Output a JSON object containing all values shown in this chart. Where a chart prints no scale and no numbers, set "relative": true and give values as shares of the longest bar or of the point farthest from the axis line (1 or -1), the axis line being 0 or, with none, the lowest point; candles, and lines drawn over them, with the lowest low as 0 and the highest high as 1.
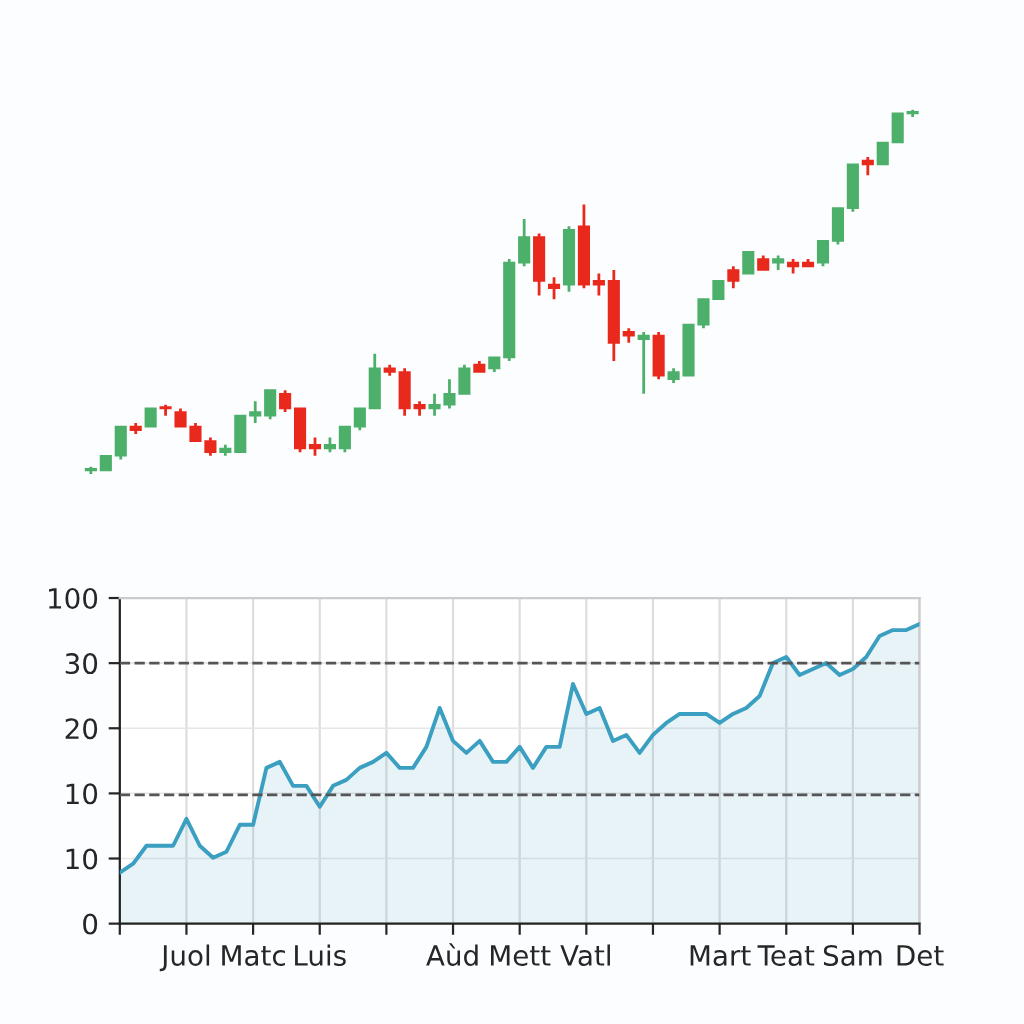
{
  "chart_data": [
    {
      "type": "candlestick",
      "relative": true,
      "categories": [
        null,
        null,
        null,
        null,
        null,
        null,
        null,
        null,
        null,
        null,
        null,
        null,
        null,
        null,
        null,
        null,
        null,
        null,
        null,
        null,
        null,
        null,
        null,
        null,
        null,
        null,
        null,
        null,
        null,
        null,
        null,
        null,
        null,
        null,
        null,
        null,
        null,
        null,
        null,
        null,
        null,
        null,
        null,
        null,
        null,
        null,
        null,
        null,
        null,
        null,
        null,
        null,
        null,
        null,
        null,
        null
      ],
      "ohlc": [
        [
          0.01,
          0.02,
          0,
          0.01
        ],
        [
          0.01,
          0.05,
          0.01,
          0.05
        ],
        [
          0.05,
          0.13,
          0.04,
          0.13
        ],
        [
          0.13,
          0.14,
          0.11,
          0.12
        ],
        [
          0.13,
          0.18,
          0.13,
          0.18
        ],
        [
          0.18,
          0.19,
          0.16,
          0.18
        ],
        [
          0.17,
          0.18,
          0.13,
          0.13
        ],
        [
          0.13,
          0.14,
          0.09,
          0.09
        ],
        [
          0.09,
          0.1,
          0.05,
          0.06
        ],
        [
          0.06,
          0.08,
          0.05,
          0.07
        ],
        [
          0.06,
          0.16,
          0.06,
          0.16
        ],
        [
          0.16,
          0.2,
          0.14,
          0.17
        ],
        [
          0.16,
          0.23,
          0.15,
          0.23
        ],
        [
          0.22,
          0.23,
          0.17,
          0.18
        ],
        [
          0.18,
          0.18,
          0.06,
          0.07
        ],
        [
          0.08,
          0.1,
          0.05,
          0.07
        ],
        [
          0.07,
          0.1,
          0.06,
          0.08
        ],
        [
          0.07,
          0.13,
          0.06,
          0.13
        ],
        [
          0.13,
          0.18,
          0.12,
          0.18
        ],
        [
          0.18,
          0.33,
          0.18,
          0.29
        ],
        [
          0.29,
          0.3,
          0.27,
          0.28
        ],
        [
          0.28,
          0.29,
          0.16,
          0.18
        ],
        [
          0.19,
          0.2,
          0.16,
          0.18
        ],
        [
          0.18,
          0.22,
          0.16,
          0.19
        ],
        [
          0.19,
          0.26,
          0.18,
          0.22
        ],
        [
          0.22,
          0.3,
          0.22,
          0.29
        ],
        [
          0.3,
          0.31,
          0.28,
          0.28
        ],
        [
          0.29,
          0.32,
          0.28,
          0.32
        ],
        [
          0.32,
          0.59,
          0.31,
          0.58
        ],
        [
          0.58,
          0.7,
          0.57,
          0.65
        ],
        [
          0.65,
          0.66,
          0.49,
          0.53
        ],
        [
          0.52,
          0.54,
          0.48,
          0.51
        ],
        [
          0.52,
          0.68,
          0.5,
          0.67
        ],
        [
          0.68,
          0.74,
          0.51,
          0.52
        ],
        [
          0.53,
          0.55,
          0.49,
          0.52
        ],
        [
          0.53,
          0.56,
          0.31,
          0.36
        ],
        [
          0.39,
          0.4,
          0.36,
          0.38
        ],
        [
          0.37,
          0.39,
          0.22,
          0.38
        ],
        [
          0.38,
          0.39,
          0.26,
          0.27
        ],
        [
          0.26,
          0.29,
          0.25,
          0.28
        ],
        [
          0.27,
          0.41,
          0.27,
          0.41
        ],
        [
          0.41,
          0.48,
          0.4,
          0.48
        ],
        [
          0.48,
          0.53,
          0.48,
          0.53
        ],
        [
          0.56,
          0.57,
          0.51,
          0.53
        ],
        [
          0.55,
          0.61,
          0.55,
          0.61
        ],
        [
          0.59,
          0.6,
          0.56,
          0.56
        ],
        [
          0.58,
          0.6,
          0.56,
          0.59
        ],
        [
          0.58,
          0.59,
          0.55,
          0.57
        ],
        [
          0.58,
          0.59,
          0.57,
          0.57
        ],
        [
          0.58,
          0.64,
          0.57,
          0.64
        ],
        [
          0.64,
          0.73,
          0.63,
          0.73
        ],
        [
          0.73,
          0.85,
          0.72,
          0.85
        ],
        [
          0.86,
          0.87,
          0.82,
          0.85
        ],
        [
          0.85,
          0.91,
          0.85,
          0.91
        ],
        [
          0.91,
          0.99,
          0.91,
          0.99
        ],
        [
          0.99,
          1,
          0.98,
          0.99
        ]
      ],
      "colors": [
        "#4caf6a",
        "#4caf6a",
        "#4caf6a",
        "#e8291c",
        "#4caf6a",
        "#e8291c",
        "#e8291c",
        "#e8291c",
        "#e8291c",
        "#4caf6a",
        "#4caf6a",
        "#4caf6a",
        "#4caf6a",
        "#e8291c",
        "#e8291c",
        "#e8291c",
        "#4caf6a",
        "#4caf6a",
        "#4caf6a",
        "#4caf6a",
        "#e8291c",
        "#e8291c",
        "#e8291c",
        "#4caf6a",
        "#4caf6a",
        "#4caf6a",
        "#e8291c",
        "#4caf6a",
        "#4caf6a",
        "#4caf6a",
        "#e8291c",
        "#e8291c",
        "#4caf6a",
        "#e8291c",
        "#e8291c",
        "#e8291c",
        "#e8291c",
        "#4caf6a",
        "#e8291c",
        "#4caf6a",
        "#4caf6a",
        "#4caf6a",
        "#4caf6a",
        "#e8291c",
        "#4caf6a",
        "#e8291c",
        "#4caf6a",
        "#e8291c",
        "#e8291c",
        "#4caf6a",
        "#4caf6a",
        "#4caf6a",
        "#e8291c",
        "#4caf6a",
        "#4caf6a",
        "#4caf6a"
      ]
    },
    {
      "type": "area",
      "grid": true,
      "relative": true,
      "categories": [
        null,
        null,
        null,
        null,
        null,
        "Juol",
        null,
        null,
        null,
        null,
        "Matc",
        null,
        null,
        null,
        null,
        "Luis",
        null,
        null,
        null,
        null,
        null,
        null,
        null,
        null,
        null,
        "Aùd",
        null,
        null,
        null,
        null,
        "Mett",
        null,
        null,
        null,
        null,
        "Vatl",
        null,
        null,
        null,
        null,
        null,
        null,
        null,
        null,
        null,
        "Mart",
        null,
        null,
        null,
        null,
        "Teat",
        null,
        null,
        null,
        null,
        "Sam",
        null,
        null,
        null,
        null,
        "Det"
      ],
      "annotations": [
        "0",
        "10",
        "10",
        "20",
        "30",
        "100"
      ],
      "series": [
        {
          "color": "#3a9fc0",
          "values": [
            0.17,
            0.2,
            0.26,
            0.26,
            0.26,
            0.35,
            0.26,
            0.22,
            0.24,
            0.33,
            0.33,
            0.52,
            0.54,
            0.46,
            0.46,
            0.39,
            0.46,
            0.48,
            0.52,
            0.54,
            0.57,
            0.52,
            0.52,
            0.59,
            0.72,
            0.61,
            0.57,
            0.61,
            0.54,
            0.54,
            0.59,
            0.52,
            0.59,
            0.59,
            0.8,
            0.7,
            0.72,
            0.61,
            0.63,
            0.57,
            0.63,
            0.67,
            0.7,
            0.7,
            0.7,
            0.67,
            0.7,
            0.72,
            0.76,
            0.87,
            0.89,
            0.83,
            0.85,
            0.87,
            0.83,
            0.85,
            0.89,
            0.96,
            0.98,
            0.98,
            1
          ]
        }
      ],
      "ref_lines": [
        {
          "axis": "y",
          "value": 0.43,
          "color": "#555555",
          "line_style": "dashed"
        },
        {
          "axis": "y",
          "value": 0.87,
          "color": "#555555",
          "line_style": "dashed"
        }
      ]
    }
  ]
}
